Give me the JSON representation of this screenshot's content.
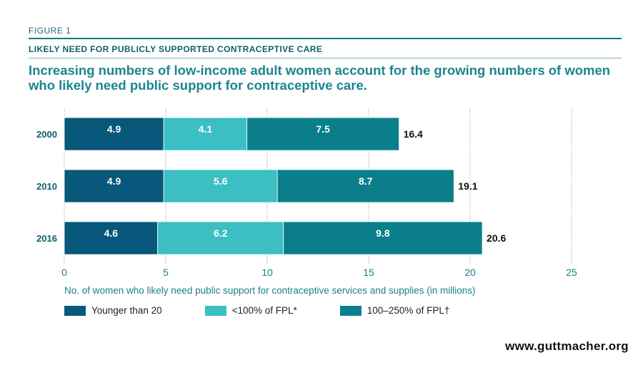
{
  "figure_label": "FIGURE 1",
  "subheading": "LIKELY NEED FOR PUBLICLY SUPPORTED CONTRACEPTIVE CARE",
  "title": "Increasing numbers of low-income adult women account for the growing numbers of women who likely need public support for contraceptive care.",
  "footer": "www.guttmacher.org",
  "chart_data": {
    "type": "bar",
    "orientation": "horizontal",
    "stacked": true,
    "categories": [
      "2000",
      "2010",
      "2016"
    ],
    "series": [
      {
        "name": "Younger than 20",
        "values": [
          4.9,
          4.9,
          4.6
        ],
        "color": "#07587a"
      },
      {
        "name": "<100% of FPL*",
        "values": [
          4.1,
          5.6,
          6.2
        ],
        "color": "#3bbfc3"
      },
      {
        "name": "100–250% of FPL†",
        "values": [
          7.5,
          8.7,
          9.8
        ],
        "color": "#0a7f8b"
      }
    ],
    "totals": [
      16.4,
      19.1,
      20.6
    ],
    "xlabel": "No. of women who likely need public support for contraceptive services and supplies (in millions)",
    "xlim": [
      0,
      25
    ],
    "xticks": [
      0,
      5,
      10,
      15,
      20,
      25
    ],
    "grid": true,
    "legend_position": "bottom"
  }
}
